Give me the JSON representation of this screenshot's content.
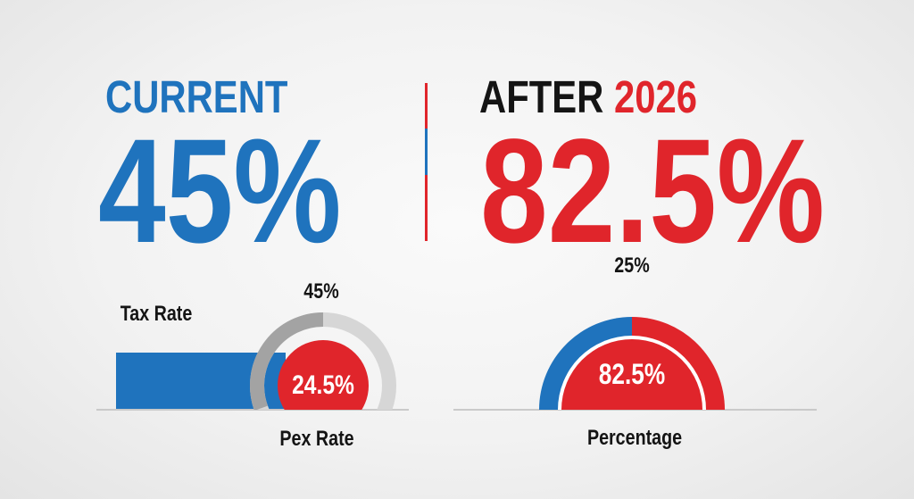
{
  "current": {
    "heading": "CURRENT",
    "value": "45%"
  },
  "after": {
    "heading_prefix": "AFTER",
    "heading_year": "2026",
    "value": "82.5%"
  },
  "colors": {
    "blue": "#1f73bd",
    "red": "#e0252b",
    "gray_dark": "#a3a3a3",
    "gray_light": "#d6d6d6"
  },
  "chart_data": [
    {
      "type": "bar",
      "title": "",
      "series": [
        {
          "name": "Tax Rate",
          "label": "Tax Rate",
          "value": 45
        }
      ],
      "ring": {
        "label": "45%",
        "value": 45
      },
      "center": {
        "label": "24.5%",
        "value": 24.5
      },
      "xlabel": "Pex Rate"
    },
    {
      "type": "pie",
      "title": "",
      "outer": {
        "label": "25%",
        "value": 25
      },
      "center": {
        "label": "82.5%",
        "value": 82.5
      },
      "xlabel": "Percentage"
    }
  ]
}
